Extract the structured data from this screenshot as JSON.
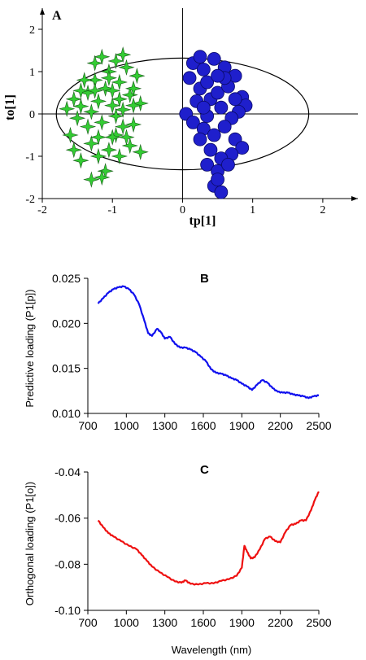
{
  "chart_data": [
    {
      "panel": "A",
      "type": "scatter",
      "xlabel": "tp[1]",
      "ylabel": "to[1]",
      "xlim": [
        -2,
        2.5
      ],
      "ylim": [
        -2,
        2.5
      ],
      "xticks": [
        "-2",
        "-1",
        "0",
        "1",
        "2"
      ],
      "yticks": [
        "2",
        "1",
        "0",
        "-1",
        "-2"
      ],
      "ellipse": {
        "center": [
          0,
          0
        ],
        "rx": 1.8,
        "ry": 1.32
      },
      "series": [
        {
          "color": "#33cc33",
          "marker": "star",
          "points": [
            [
              -1.65,
              0.12
            ],
            [
              -1.55,
              0.35
            ],
            [
              -1.45,
              0.18
            ],
            [
              -1.5,
              -0.1
            ],
            [
              -1.35,
              0.5
            ],
            [
              -1.3,
              0.05
            ],
            [
              -1.25,
              0.8
            ],
            [
              -1.2,
              0.3
            ],
            [
              -1.15,
              -0.2
            ],
            [
              -1.1,
              0.6
            ],
            [
              -1.05,
              1.0
            ],
            [
              -1.0,
              0.2
            ],
            [
              -0.95,
              -0.5
            ],
            [
              -0.9,
              0.75
            ],
            [
              -0.85,
              0.1
            ],
            [
              -0.8,
              1.1
            ],
            [
              -0.75,
              0.45
            ],
            [
              -0.7,
              -0.25
            ],
            [
              -0.65,
              0.9
            ],
            [
              -0.6,
              0.25
            ],
            [
              -1.6,
              -0.5
            ],
            [
              -1.55,
              -0.85
            ],
            [
              -1.45,
              -1.1
            ],
            [
              -1.3,
              -0.7
            ],
            [
              -1.2,
              -1.0
            ],
            [
              -1.1,
              -1.35
            ],
            [
              -1.05,
              -0.85
            ],
            [
              -1.0,
              -0.55
            ],
            [
              -0.9,
              -1.0
            ],
            [
              -0.85,
              -0.3
            ],
            [
              -0.75,
              -0.75
            ],
            [
              -0.7,
              0.6
            ],
            [
              -0.6,
              -0.9
            ],
            [
              -1.35,
              -0.3
            ],
            [
              -1.25,
              1.2
            ],
            [
              -1.15,
              1.35
            ],
            [
              -0.95,
              1.25
            ],
            [
              -0.85,
              1.4
            ],
            [
              -1.3,
              -1.55
            ],
            [
              -1.15,
              -1.5
            ],
            [
              -1.4,
              0.8
            ],
            [
              -1.0,
              0.55
            ],
            [
              -0.9,
              0.35
            ],
            [
              -1.25,
              0.55
            ],
            [
              -1.45,
              0.55
            ],
            [
              -1.2,
              -0.55
            ],
            [
              -0.95,
              -0.05
            ],
            [
              -0.8,
              -0.55
            ],
            [
              -1.05,
              0.85
            ],
            [
              -0.7,
              0.2
            ]
          ]
        },
        {
          "color": "#1f1fcc",
          "marker": "circle",
          "points": [
            [
              0.15,
              1.2
            ],
            [
              0.3,
              1.05
            ],
            [
              0.45,
              1.3
            ],
            [
              0.6,
              1.1
            ],
            [
              0.75,
              0.9
            ],
            [
              0.85,
              0.4
            ],
            [
              0.9,
              0.2
            ],
            [
              0.8,
              0.05
            ],
            [
              0.7,
              -0.1
            ],
            [
              0.55,
              0.15
            ],
            [
              0.4,
              0.35
            ],
            [
              0.25,
              0.6
            ],
            [
              0.1,
              0.85
            ],
            [
              0.2,
              0.3
            ],
            [
              0.35,
              -0.05
            ],
            [
              0.5,
              0.5
            ],
            [
              0.65,
              0.65
            ],
            [
              0.05,
              0.0
            ],
            [
              0.15,
              -0.2
            ],
            [
              0.3,
              -0.35
            ],
            [
              0.45,
              -0.5
            ],
            [
              0.6,
              -0.3
            ],
            [
              0.75,
              -0.6
            ],
            [
              0.85,
              -0.8
            ],
            [
              0.7,
              -0.95
            ],
            [
              0.55,
              -1.05
            ],
            [
              0.4,
              -0.85
            ],
            [
              0.25,
              -0.6
            ],
            [
              0.35,
              -1.2
            ],
            [
              0.5,
              -1.35
            ],
            [
              0.65,
              -1.2
            ],
            [
              0.45,
              -1.7
            ],
            [
              0.55,
              -1.85
            ],
            [
              0.5,
              -1.55
            ],
            [
              0.35,
              0.75
            ],
            [
              0.6,
              0.85
            ],
            [
              0.75,
              0.35
            ],
            [
              0.25,
              1.35
            ],
            [
              0.5,
              0.9
            ],
            [
              0.3,
              0.15
            ]
          ]
        }
      ]
    },
    {
      "panel": "B",
      "type": "line",
      "xlabel": "",
      "ylabel": "Predictive loading (P1[p])",
      "xlim": [
        700,
        2500
      ],
      "ylim": [
        0.01,
        0.025
      ],
      "xticks": [
        "700",
        "1000",
        "1300",
        "1600",
        "1900",
        "2200",
        "2500"
      ],
      "yticks": [
        "0.025",
        "0.020",
        "0.015",
        "0.010"
      ],
      "series": [
        {
          "color": "#1010ee",
          "x": [
            780,
            820,
            860,
            900,
            940,
            980,
            1020,
            1060,
            1100,
            1140,
            1170,
            1200,
            1240,
            1270,
            1300,
            1340,
            1380,
            1420,
            1460,
            1500,
            1540,
            1580,
            1620,
            1660,
            1700,
            1740,
            1780,
            1820,
            1860,
            1900,
            1940,
            1980,
            2020,
            2060,
            2100,
            2140,
            2180,
            2220,
            2260,
            2300,
            2340,
            2380,
            2420,
            2460,
            2500
          ],
          "y": [
            0.0222,
            0.0228,
            0.0234,
            0.0238,
            0.024,
            0.0241,
            0.0238,
            0.0232,
            0.0221,
            0.0203,
            0.0189,
            0.0186,
            0.0194,
            0.019,
            0.0183,
            0.0185,
            0.0177,
            0.0173,
            0.0173,
            0.0171,
            0.0168,
            0.0163,
            0.0158,
            0.0149,
            0.0145,
            0.0144,
            0.0142,
            0.0139,
            0.0137,
            0.0133,
            0.013,
            0.0126,
            0.0132,
            0.0137,
            0.0134,
            0.0128,
            0.0124,
            0.0123,
            0.0123,
            0.0121,
            0.012,
            0.0119,
            0.0117,
            0.0119,
            0.012
          ]
        }
      ]
    },
    {
      "panel": "C",
      "type": "line",
      "xlabel": "Wavelength (nm)",
      "ylabel": "Orthogonal loading (P1[o])",
      "xlim": [
        700,
        2500
      ],
      "ylim": [
        -0.1,
        -0.04
      ],
      "xticks": [
        "700",
        "1000",
        "1300",
        "1600",
        "1900",
        "2200",
        "2500"
      ],
      "yticks": [
        "-0.04",
        "-0.06",
        "-0.08",
        "-0.10"
      ],
      "series": [
        {
          "color": "#ee1010",
          "x": [
            780,
            820,
            860,
            900,
            960,
            1020,
            1080,
            1120,
            1160,
            1200,
            1260,
            1320,
            1380,
            1430,
            1460,
            1500,
            1560,
            1620,
            1680,
            1740,
            1800,
            1860,
            1900,
            1920,
            1940,
            1970,
            2000,
            2040,
            2080,
            2120,
            2160,
            2200,
            2240,
            2280,
            2320,
            2360,
            2400,
            2440,
            2470,
            2500
          ],
          "y": [
            -0.061,
            -0.064,
            -0.0665,
            -0.068,
            -0.07,
            -0.072,
            -0.0735,
            -0.076,
            -0.0785,
            -0.081,
            -0.0835,
            -0.0855,
            -0.0875,
            -0.088,
            -0.087,
            -0.0885,
            -0.0888,
            -0.0882,
            -0.0883,
            -0.0872,
            -0.0865,
            -0.085,
            -0.0815,
            -0.072,
            -0.0745,
            -0.0775,
            -0.077,
            -0.0735,
            -0.069,
            -0.068,
            -0.07,
            -0.0705,
            -0.066,
            -0.063,
            -0.0625,
            -0.061,
            -0.061,
            -0.0565,
            -0.052,
            -0.0485
          ]
        }
      ]
    }
  ]
}
